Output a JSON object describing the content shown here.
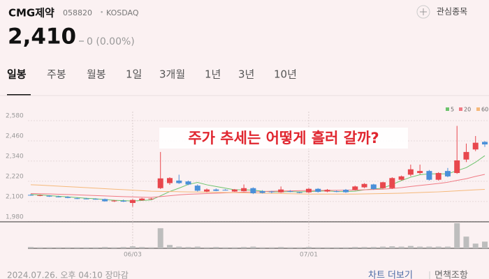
{
  "header": {
    "name": "CMG제약",
    "code": "058820",
    "separator": "•",
    "market": "KOSDAQ",
    "watch": "관심종목",
    "price": "2,410",
    "change": "0 (0.00%)"
  },
  "tabs": [
    "일봉",
    "주봉",
    "월봉",
    "1일",
    "3개월",
    "1년",
    "3년",
    "10년"
  ],
  "selected_tab": 0,
  "chart_data": {
    "type": "candlestick",
    "annotation": "주가 추세는 어떻게 흘러 갈까?",
    "categories": [
      null,
      null,
      null,
      null,
      null,
      null,
      null,
      null,
      null,
      null,
      null,
      "06/03",
      null,
      null,
      null,
      null,
      null,
      null,
      null,
      null,
      null,
      null,
      null,
      null,
      null,
      null,
      null,
      null,
      null,
      null,
      "07/01",
      null,
      null,
      null,
      null,
      null,
      null,
      null,
      null,
      null,
      null,
      null,
      null,
      null,
      null,
      null,
      null,
      null,
      null,
      null
    ],
    "open": [
      2110,
      2105,
      2105,
      2100,
      2098,
      2090,
      2088,
      2086,
      2085,
      2072,
      2075,
      2062,
      2078,
      2085,
      2150,
      2180,
      2195,
      2190,
      2165,
      2130,
      2142,
      2140,
      2130,
      2132,
      2150,
      2132,
      2130,
      2125,
      2132,
      2126,
      2125,
      2146,
      2130,
      2132,
      2140,
      2140,
      2155,
      2172,
      2150,
      2150,
      2200,
      2230,
      2240,
      2252,
      2200,
      2252,
      2240,
      2320,
      2380,
      2425
    ],
    "high": [
      2115,
      2112,
      2108,
      2105,
      2102,
      2095,
      2092,
      2090,
      2088,
      2080,
      2082,
      2085,
      2092,
      2092,
      2365,
      2215,
      2230,
      2195,
      2172,
      2148,
      2148,
      2144,
      2145,
      2172,
      2155,
      2138,
      2134,
      2160,
      2138,
      2130,
      2150,
      2150,
      2145,
      2136,
      2145,
      2165,
      2180,
      2176,
      2188,
      2215,
      2225,
      2290,
      2290,
      2258,
      2245,
      2270,
      2520,
      2415,
      2460,
      2430
    ],
    "low": [
      2105,
      2102,
      2098,
      2095,
      2090,
      2085,
      2084,
      2082,
      2070,
      2068,
      2068,
      2040,
      2075,
      2082,
      2145,
      2170,
      2175,
      2168,
      2130,
      2125,
      2132,
      2136,
      2128,
      2130,
      2115,
      2118,
      2120,
      2122,
      2126,
      2120,
      2122,
      2124,
      2126,
      2126,
      2122,
      2136,
      2150,
      2140,
      2146,
      2145,
      2195,
      2220,
      2232,
      2195,
      2195,
      2215,
      2235,
      2305,
      2370,
      2395
    ],
    "close": [
      2108,
      2108,
      2100,
      2098,
      2092,
      2088,
      2086,
      2084,
      2072,
      2076,
      2070,
      2080,
      2088,
      2088,
      2208,
      2210,
      2180,
      2172,
      2135,
      2142,
      2134,
      2138,
      2142,
      2150,
      2120,
      2122,
      2126,
      2142,
      2130,
      2124,
      2146,
      2128,
      2140,
      2128,
      2126,
      2160,
      2175,
      2145,
      2185,
      2210,
      2220,
      2262,
      2252,
      2200,
      2240,
      2220,
      2315,
      2365,
      2420,
      2410
    ],
    "volume": [
      4,
      3,
      3,
      3,
      3,
      3,
      3,
      3,
      4,
      3,
      4,
      6,
      4,
      3,
      60,
      10,
      5,
      4,
      5,
      3,
      4,
      3,
      3,
      4,
      5,
      3,
      3,
      4,
      3,
      3,
      4,
      3,
      3,
      3,
      3,
      4,
      4,
      4,
      5,
      6,
      5,
      7,
      5,
      5,
      5,
      5,
      75,
      35,
      14,
      20
    ],
    "up_color": "#e8474d",
    "down_color": "#4a90d9",
    "volume_color": "#bdbdbd",
    "series": [
      {
        "name": "5",
        "color": "#6cc36c",
        "values": [
          2112,
          2110,
          2106,
          2102,
          2098,
          2094,
          2090,
          2087,
          2082,
          2078,
          2076,
          2074,
          2077,
          2080,
          2104,
          2130,
          2150,
          2172,
          2184,
          2170,
          2160,
          2150,
          2140,
          2140,
          2138,
          2132,
          2128,
          2128,
          2130,
          2128,
          2130,
          2132,
          2134,
          2130,
          2130,
          2132,
          2140,
          2145,
          2150,
          2172,
          2195,
          2215,
          2230,
          2235,
          2235,
          2235,
          2254,
          2272,
          2304,
          2343
        ]
      },
      {
        "name": "20",
        "color": "#f07a84",
        "values": [
          2118,
          2117,
          2116,
          2114,
          2112,
          2110,
          2108,
          2106,
          2104,
          2102,
          2100,
          2098,
          2096,
          2095,
          2100,
          2105,
          2110,
          2114,
          2116,
          2118,
          2120,
          2122,
          2124,
          2126,
          2128,
          2130,
          2132,
          2133,
          2134,
          2135,
          2136,
          2136,
          2137,
          2137,
          2138,
          2139,
          2140,
          2142,
          2144,
          2148,
          2153,
          2160,
          2166,
          2172,
          2178,
          2185,
          2196,
          2206,
          2220,
          2232
        ]
      },
      {
        "name": "60",
        "color": "#f5b87a",
        "values": [
          2170,
          2168,
          2165,
          2162,
          2159,
          2156,
          2153,
          2150,
          2147,
          2144,
          2141,
          2138,
          2135,
          2132,
          2131,
          2130,
          2129,
          2128,
          2127,
          2126,
          2125,
          2124,
          2123,
          2122,
          2121,
          2120,
          2119,
          2118,
          2117,
          2116,
          2115,
          2115,
          2115,
          2115,
          2115,
          2115,
          2116,
          2117,
          2118,
          2119,
          2120,
          2122,
          2124,
          2126,
          2128,
          2131,
          2134,
          2137,
          2140,
          2143
        ]
      }
    ],
    "ylim": [
      1950,
      2605
    ],
    "yticks": [
      {
        "value": 1980,
        "label": "1,980"
      },
      {
        "value": 2100,
        "label": "2,100"
      },
      {
        "value": 2220,
        "label": "2,220"
      },
      {
        "value": 2340,
        "label": "2,340"
      },
      {
        "value": 2460,
        "label": "2,460"
      },
      {
        "value": 2580,
        "label": "2,580"
      }
    ],
    "grid": true,
    "legend": "top-right"
  },
  "footer": {
    "timestamp": "2024.07.26. 오후 04:10 장마감",
    "more": "차트 더보기",
    "disclaimer": "면책조항"
  }
}
